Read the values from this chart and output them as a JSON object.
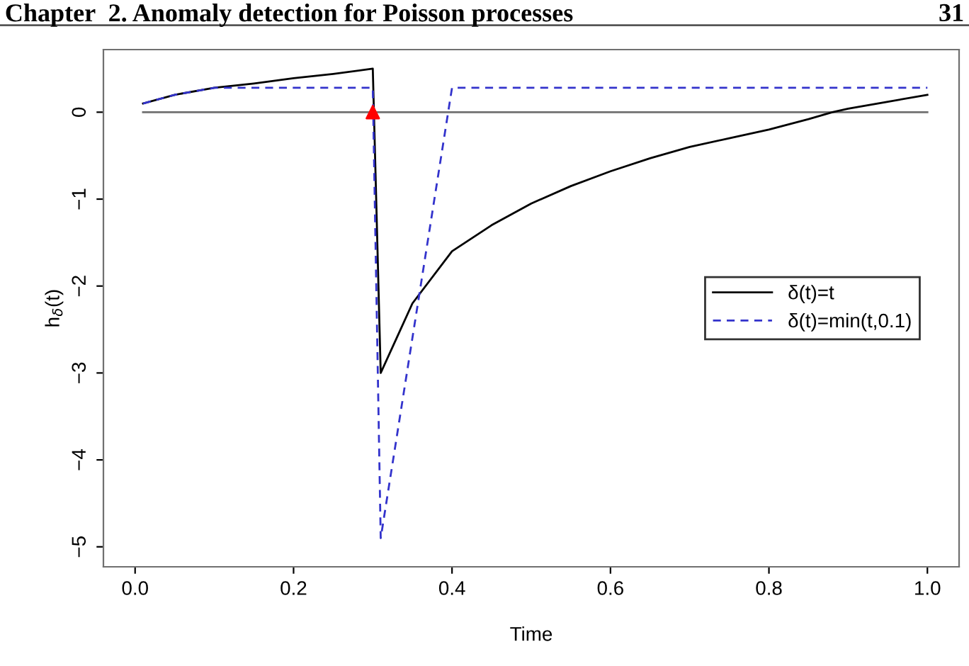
{
  "chart_data": {
    "type": "line",
    "xlabel": "Time",
    "ylabel": "h$_{δ}$(t)",
    "annotations": [
      "Chapter  2. Anomaly detection for Poisson processes",
      "31"
    ],
    "xlim": [
      -0.04,
      1.04
    ],
    "ylim": [
      -5.23,
      0.72
    ],
    "xticks": [
      {
        "value": 0,
        "label": "0.0"
      },
      0.2,
      0.4,
      0.6,
      0.8,
      {
        "value": 1,
        "label": "1.0"
      }
    ],
    "yticks": [
      {
        "value": -5,
        "label": "−5"
      },
      {
        "value": -4,
        "label": "−4"
      },
      {
        "value": -3,
        "label": "−3"
      },
      {
        "value": -2,
        "label": "−2"
      },
      {
        "value": -1,
        "label": "−1"
      },
      0
    ],
    "grid": false,
    "legend": "right",
    "series": [
      {
        "color": "#707070",
        "line_style": "solid",
        "marker": "none",
        "x": [
          0.01,
          1.0
        ],
        "values": [
          0,
          0
        ]
      },
      {
        "name": "δ(t)=t",
        "color": "#000000",
        "line_style": "solid",
        "marker": "none",
        "x": [
          0.01,
          0.05,
          0.1,
          0.15,
          0.2,
          0.25,
          0.3,
          0.31,
          0.33,
          0.35,
          0.4,
          0.45,
          0.5,
          0.55,
          0.6,
          0.65,
          0.7,
          0.75,
          0.8,
          0.85,
          0.88,
          0.9,
          0.95,
          1.0
        ],
        "values": [
          0.1,
          0.2,
          0.28,
          0.33,
          0.39,
          0.44,
          0.5,
          -3.0,
          -2.6,
          -2.2,
          -1.6,
          -1.3,
          -1.05,
          -0.85,
          -0.68,
          -0.53,
          -0.4,
          -0.3,
          -0.2,
          -0.08,
          0.0,
          0.04,
          0.12,
          0.2
        ]
      },
      {
        "name": "δ(t)=min(t,0.1)",
        "color": "#3333cc",
        "line_style": "dashed",
        "marker": "none",
        "x": [
          0.01,
          0.05,
          0.1,
          0.3,
          0.31,
          0.4,
          1.0
        ],
        "values": [
          0.1,
          0.2,
          0.28,
          0.28,
          -4.9,
          0.28,
          0.28
        ]
      },
      {
        "type": "scatter",
        "color": "#ff0000",
        "marker": "triangle",
        "x": [
          0.3
        ],
        "values": [
          0
        ]
      }
    ]
  }
}
